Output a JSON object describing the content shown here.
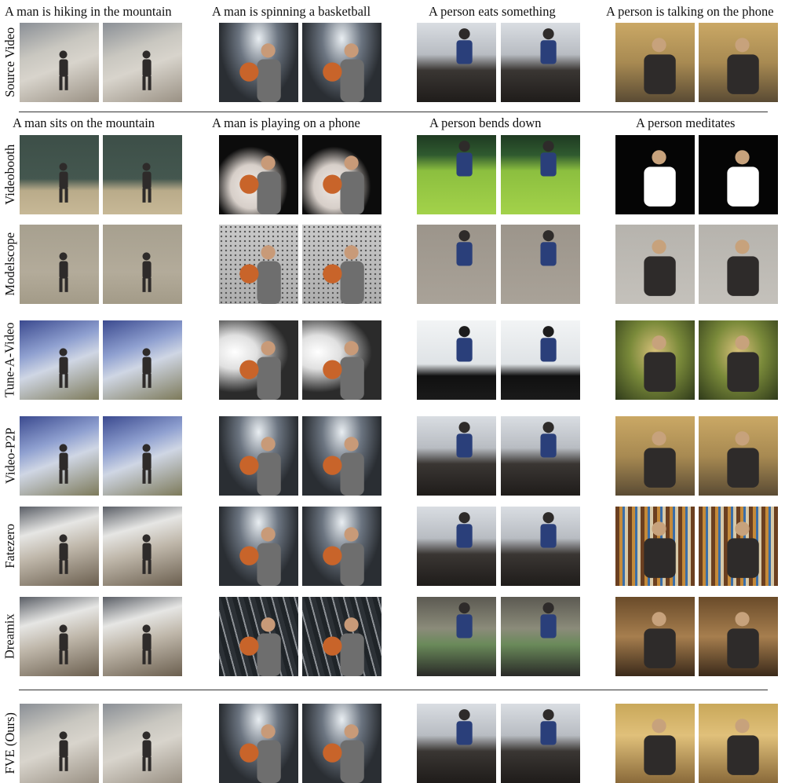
{
  "captions": {
    "source": [
      "A man is hiking in the mountain",
      "A man is spinning a basketball",
      "A person eats something",
      "A person is talking on the phone"
    ],
    "edit": [
      "A man sits on the mountain",
      "A man is playing on a phone",
      "A person bends down",
      "A person meditates"
    ]
  },
  "rows": [
    {
      "label": "Source Video",
      "scenes": [
        "sc-hike",
        "sc-bball",
        "sc-room",
        "sc-phone"
      ]
    },
    {
      "label": "Videobooth",
      "scenes": [
        "sc-grass",
        "sc-dark",
        "sc-lawn",
        "sc-black"
      ]
    },
    {
      "label": "Modelscope",
      "scenes": [
        "sc-sand",
        "sc-mesh",
        "sc-concrete",
        "sc-stone"
      ]
    },
    {
      "label": "Tune-A-Video",
      "scenes": [
        "sc-blue",
        "sc-studio",
        "sc-window",
        "sc-greenblur"
      ]
    },
    {
      "label": "Video-P2P",
      "scenes": [
        "sc-blue",
        "sc-bball",
        "sc-room",
        "sc-phone"
      ]
    },
    {
      "label": "Fatezero",
      "scenes": [
        "sc-rocky",
        "sc-bball",
        "sc-room",
        "sc-psych"
      ]
    },
    {
      "label": "Dreamix",
      "scenes": [
        "sc-rocky",
        "sc-lights",
        "sc-bed",
        "sc-wood"
      ]
    },
    {
      "label": "FVE (Ours)",
      "scenes": [
        "sc-hike",
        "sc-bball",
        "sc-room",
        "sc-yellowroom"
      ]
    }
  ]
}
